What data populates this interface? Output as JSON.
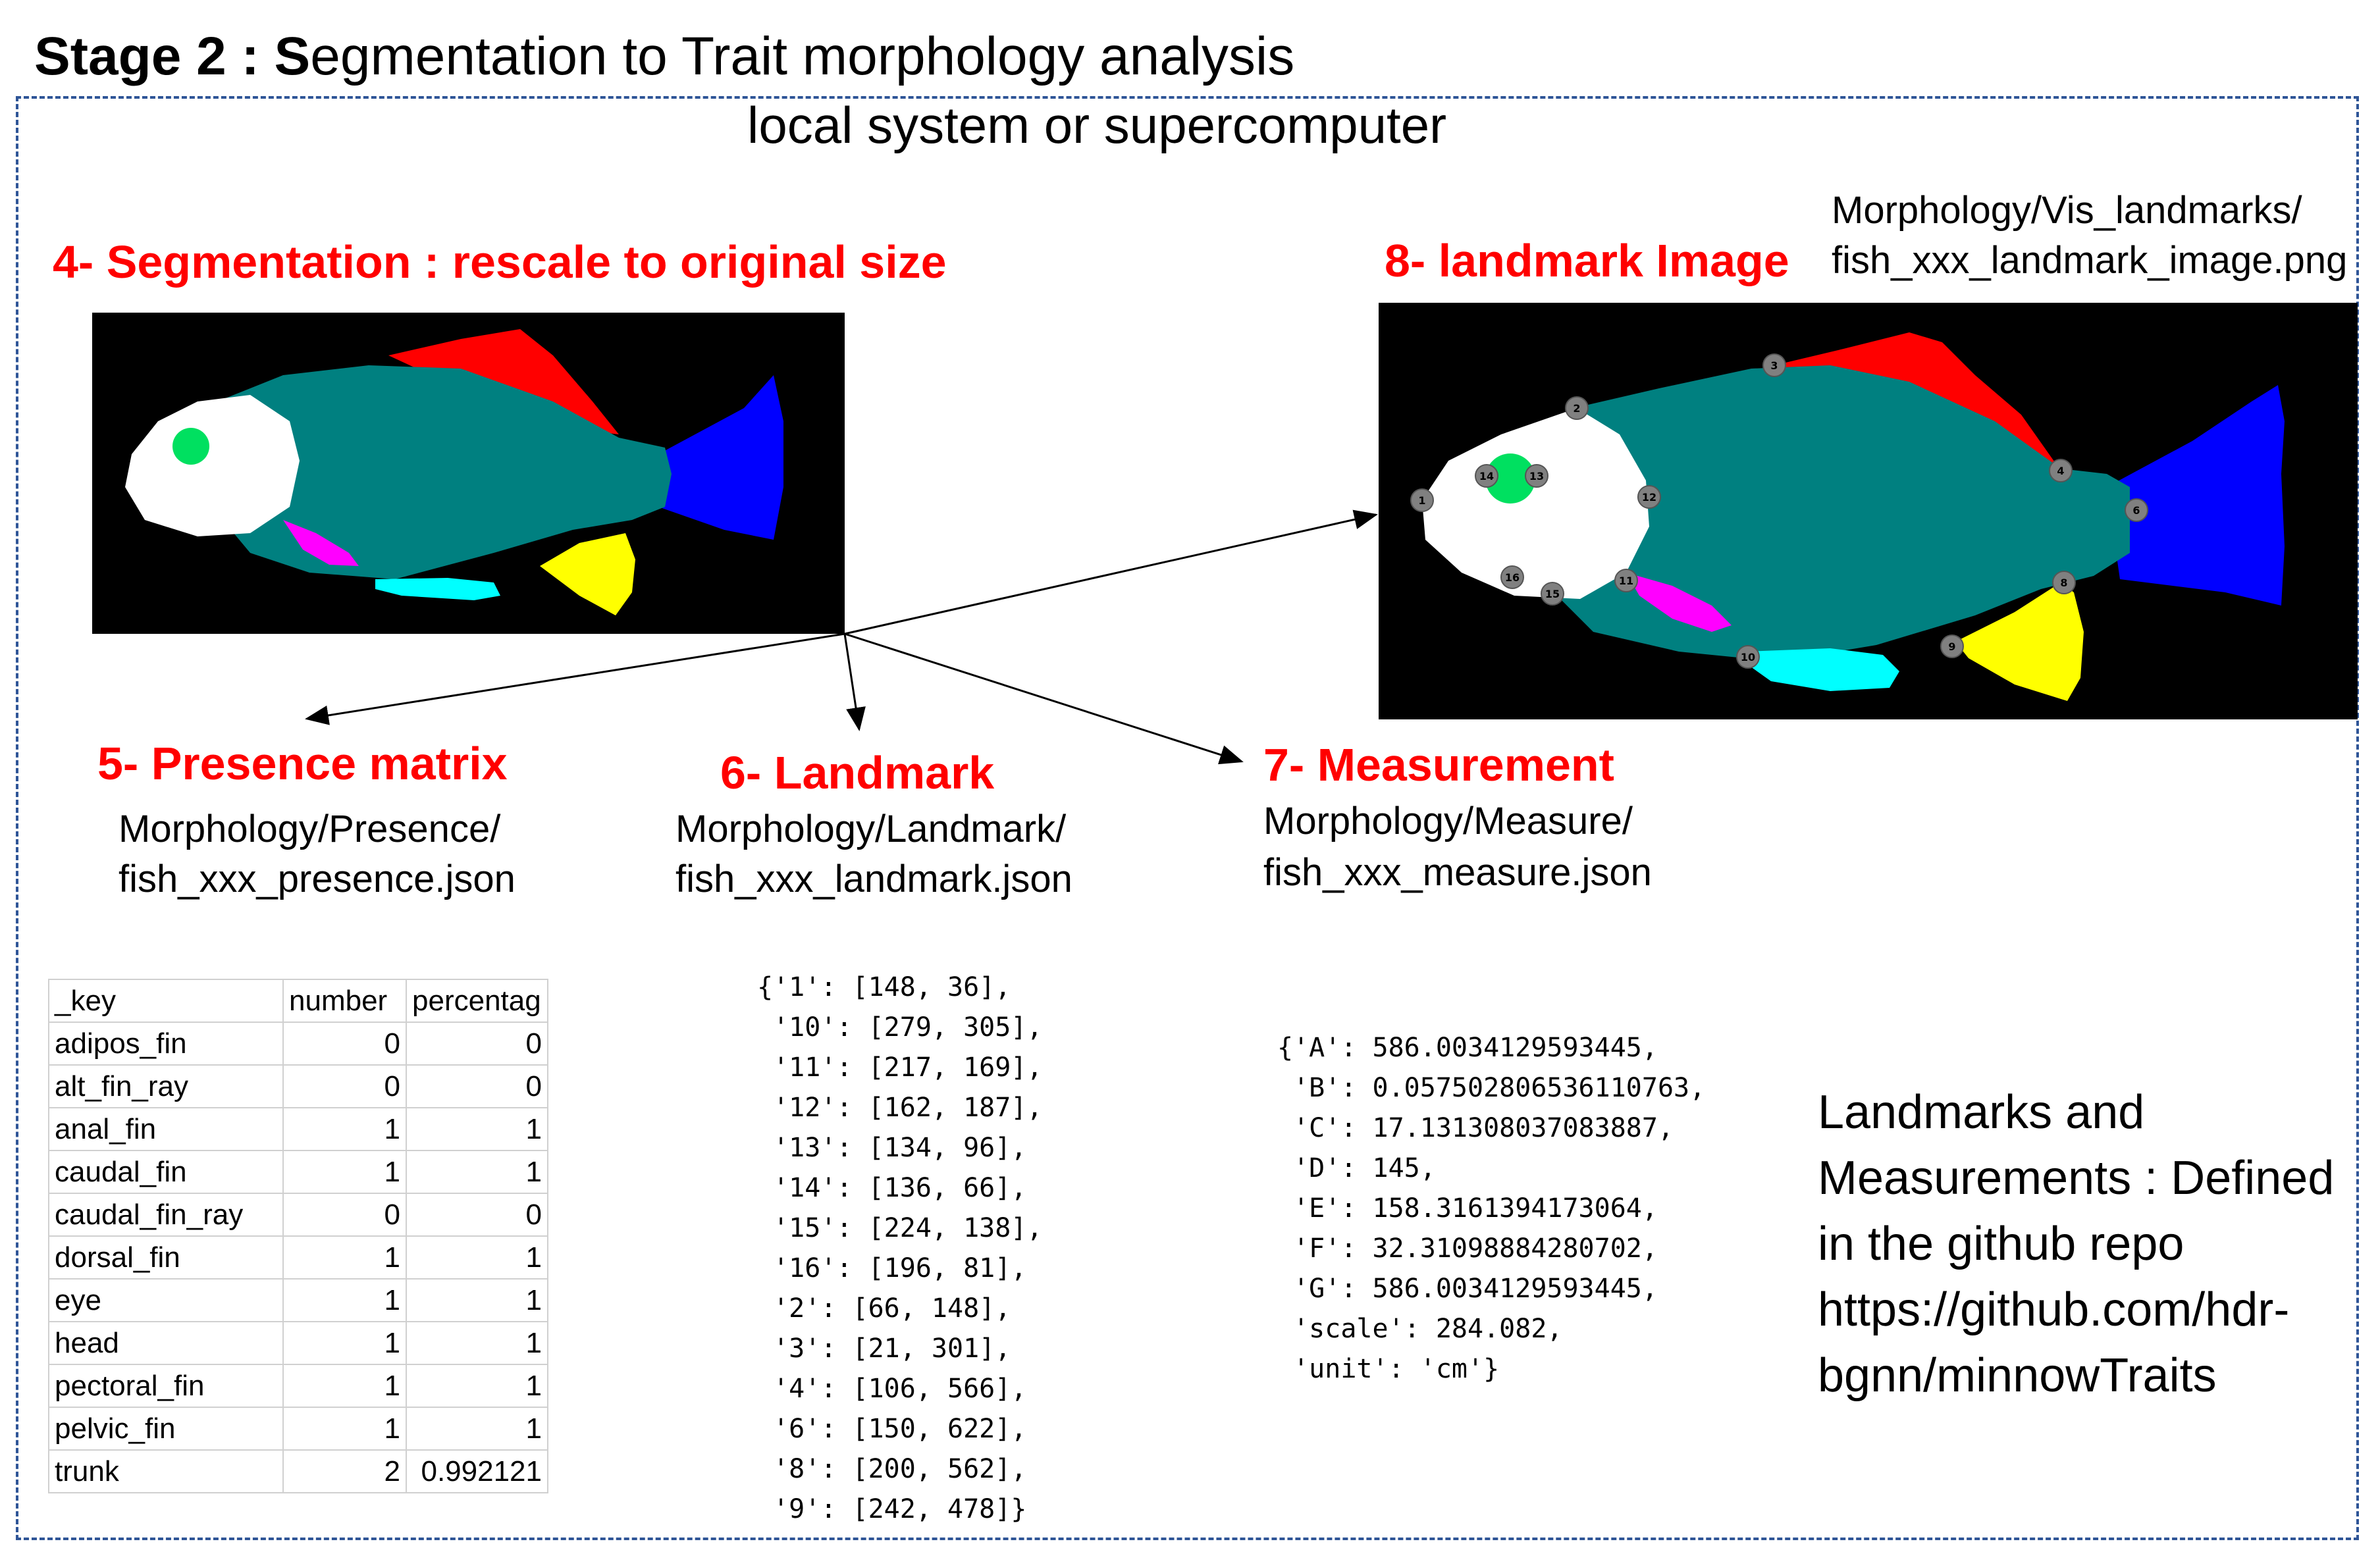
{
  "title": {
    "bold": "Stage 2 : S",
    "rest": "egmentation to Trait morphology analysis"
  },
  "subtitle": "local system or supercomputer",
  "steps": {
    "segmentation": "4- Segmentation : rescale to original size",
    "presence": {
      "heading": "5- Presence matrix",
      "path1": "Morphology/Presence/",
      "path2": "fish_xxx_presence.json"
    },
    "landmark": {
      "heading": "6- Landmark",
      "path1": "Morphology/Landmark/",
      "path2": "fish_xxx_landmark.json"
    },
    "measurement": {
      "heading": "7- Measurement",
      "path1": "Morphology/Measure/",
      "path2": "fish_xxx_measure.json"
    },
    "landmark_image": {
      "heading": "8- landmark Image",
      "path1": "Morphology/Vis_landmarks/",
      "path2": "fish_xxx_landmark_image.png"
    }
  },
  "presence_table": {
    "headers": [
      "_key",
      "number",
      "percentag"
    ],
    "rows": [
      [
        "adipos_fin",
        "0",
        "0"
      ],
      [
        "alt_fin_ray",
        "0",
        "0"
      ],
      [
        "anal_fin",
        "1",
        "1"
      ],
      [
        "caudal_fin",
        "1",
        "1"
      ],
      [
        "caudal_fin_ray",
        "0",
        "0"
      ],
      [
        "dorsal_fin",
        "1",
        "1"
      ],
      [
        "eye",
        "1",
        "1"
      ],
      [
        "head",
        "1",
        "1"
      ],
      [
        "pectoral_fin",
        "1",
        "1"
      ],
      [
        "pelvic_fin",
        "1",
        "1"
      ],
      [
        "trunk",
        "2",
        "0.992121"
      ]
    ]
  },
  "landmark_json": "{'1': [148, 36],\n '10': [279, 305],\n '11': [217, 169],\n '12': [162, 187],\n '13': [134, 96],\n '14': [136, 66],\n '15': [224, 138],\n '16': [196, 81],\n '2': [66, 148],\n '3': [21, 301],\n '4': [106, 566],\n '6': [150, 622],\n '8': [200, 562],\n '9': [242, 478]}",
  "measure_json": "{'A': 586.0034129593445,\n 'B': 0.057502806536110763,\n 'C': 17.131308037083887,\n 'D': 145,\n 'E': 158.3161394173064,\n 'F': 32.31098884280702,\n 'G': 586.0034129593445,\n 'scale': 284.082,\n 'unit': 'cm'}",
  "note": "Landmarks and Measurements : Defined in the github repo https://github.com/hdr-bgnn/minnowTraits",
  "landmark_points": [
    "1",
    "2",
    "3",
    "4",
    "6",
    "8",
    "9",
    "10",
    "11",
    "12",
    "13",
    "14",
    "15",
    "16"
  ],
  "colors": {
    "heading_red": "#ff0000",
    "box_dash": "#2f5597",
    "trunk": "#008080",
    "dorsal_fin": "#ff0000",
    "caudal_fin": "#0000ff",
    "head": "#ffffff",
    "eye": "#00e060",
    "pectoral_fin": "#ff00ff",
    "pelvic_fin": "#00ffff",
    "anal_fin": "#ffff00",
    "landmark_dot": "#808080",
    "background": "#000000"
  }
}
